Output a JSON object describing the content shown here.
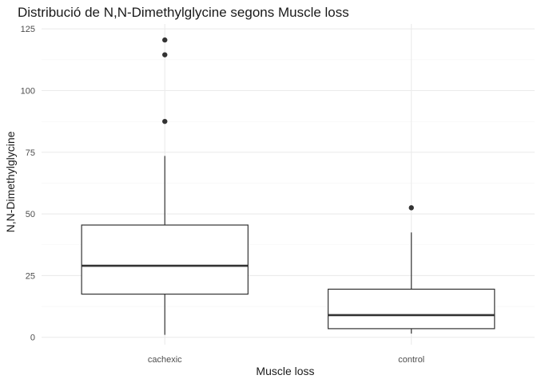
{
  "chart_data": {
    "type": "boxplot",
    "title": "Distribució de N,N-Dimethylglycine segons Muscle loss",
    "xlabel": "Muscle loss",
    "ylabel": "N,N-Dimethylglycine",
    "ylim": [
      -3,
      127
    ],
    "yticks": [
      0,
      25,
      50,
      75,
      100,
      125
    ],
    "yminor": [
      12.5,
      37.5,
      62.5,
      87.5,
      112.5
    ],
    "grid": true,
    "legend": "none",
    "categories": [
      "cachexic",
      "control"
    ],
    "boxes": [
      {
        "category": "cachexic",
        "whisker_low": 1,
        "q1": 17.5,
        "median": 29,
        "q3": 45.5,
        "whisker_high": 73.5,
        "outliers": [
          87.5,
          114.5,
          120.5
        ]
      },
      {
        "category": "control",
        "whisker_low": 1.5,
        "q1": 3.5,
        "median": 9,
        "q3": 19.5,
        "whisker_high": 42.5,
        "outliers": [
          52.5
        ]
      }
    ],
    "colors": {
      "line": "#333333",
      "fill": "#ffffff",
      "grid": "#ebebeb"
    }
  }
}
